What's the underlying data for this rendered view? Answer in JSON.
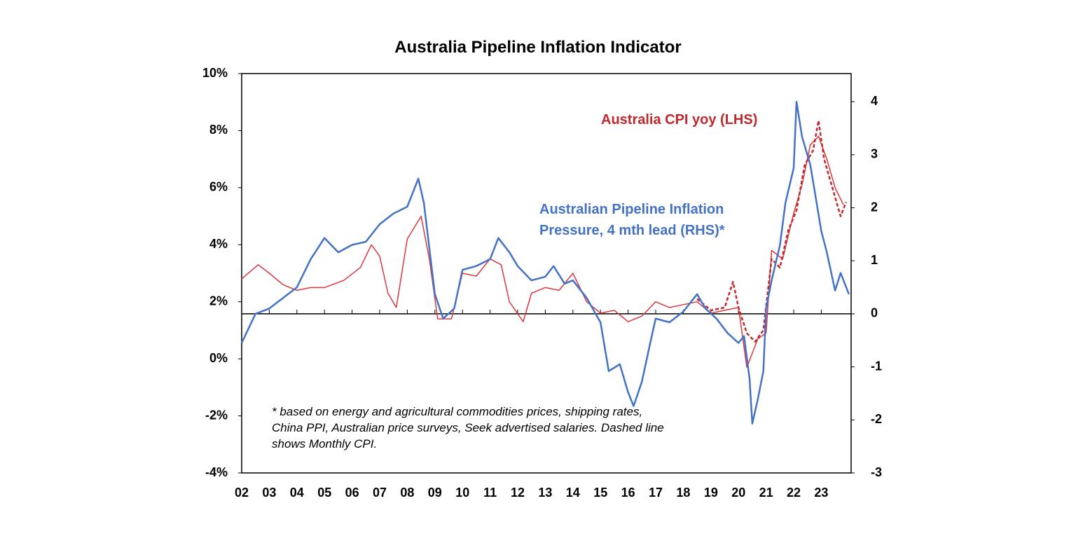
{
  "chart_data": {
    "type": "line",
    "title": "Australia Pipeline Inflation Indicator",
    "footnote": "* based on energy and agricultural commodities prices, shipping rates, China PPI, Australian price surveys, Seek advertised salaries. Dashed line shows Monthly CPI.",
    "xlim": [
      2002,
      2024.08
    ],
    "xticks": [
      {
        "value": 2002,
        "label": "02"
      },
      {
        "value": 2003,
        "label": "03"
      },
      {
        "value": 2004,
        "label": "04"
      },
      {
        "value": 2005,
        "label": "05"
      },
      {
        "value": 2006,
        "label": "06"
      },
      {
        "value": 2007,
        "label": "07"
      },
      {
        "value": 2008,
        "label": "08"
      },
      {
        "value": 2009,
        "label": "09"
      },
      {
        "value": 2010,
        "label": "10"
      },
      {
        "value": 2011,
        "label": "11"
      },
      {
        "value": 2012,
        "label": "12"
      },
      {
        "value": 2013,
        "label": "13"
      },
      {
        "value": 2014,
        "label": "14"
      },
      {
        "value": 2015,
        "label": "15"
      },
      {
        "value": 2016,
        "label": "16"
      },
      {
        "value": 2017,
        "label": "17"
      },
      {
        "value": 2018,
        "label": "18"
      },
      {
        "value": 2019,
        "label": "19"
      },
      {
        "value": 2020,
        "label": "20"
      },
      {
        "value": 2021,
        "label": "21"
      },
      {
        "value": 2022,
        "label": "22"
      },
      {
        "value": 2023,
        "label": "23"
      }
    ],
    "ylim": [
      -4,
      10
    ],
    "yticks": [
      {
        "value": -4,
        "label": "-4%"
      },
      {
        "value": -2,
        "label": "-2%"
      },
      {
        "value": 0,
        "label": "0%"
      },
      {
        "value": 2,
        "label": "2%"
      },
      {
        "value": 4,
        "label": "4%"
      },
      {
        "value": 6,
        "label": "6%"
      },
      {
        "value": 8,
        "label": "8%"
      },
      {
        "value": 10,
        "label": "10%"
      }
    ],
    "y2lim": [
      -3,
      4.53
    ],
    "y2ticks": [
      -3,
      -2,
      -1,
      0,
      1,
      2,
      3,
      4
    ],
    "series": [
      {
        "name": "Australia CPI yoy (LHS)",
        "color": "#d9383e",
        "width": 1.5,
        "x": [
          2002.0,
          2002.6,
          2003.0,
          2003.5,
          2004.0,
          2004.5,
          2005.0,
          2005.7,
          2006.3,
          2006.7,
          2007.0,
          2007.3,
          2007.6,
          2008.0,
          2008.5,
          2008.8,
          2009.1,
          2009.6,
          2010.0,
          2010.5,
          2011.0,
          2011.4,
          2011.7,
          2012.2,
          2012.5,
          2013.0,
          2013.5,
          2014.0,
          2014.5,
          2015.0,
          2015.5,
          2016.0,
          2016.5,
          2017.0,
          2017.5,
          2018.0,
          2018.5,
          2019.0,
          2019.5,
          2020.0,
          2020.3,
          2020.7,
          2021.0,
          2021.2,
          2021.6,
          2022.0,
          2022.3,
          2022.6,
          2022.9,
          2023.2,
          2023.5,
          2023.8
        ],
        "values": [
          2.8,
          3.3,
          3.0,
          2.6,
          2.4,
          2.5,
          2.5,
          2.75,
          3.2,
          4.0,
          3.6,
          2.3,
          1.8,
          4.2,
          5.0,
          3.5,
          1.4,
          1.4,
          3.0,
          2.9,
          3.5,
          3.3,
          2.0,
          1.3,
          2.3,
          2.5,
          2.4,
          3.0,
          2.0,
          1.6,
          1.7,
          1.3,
          1.5,
          2.0,
          1.8,
          1.9,
          2.0,
          1.6,
          1.7,
          1.8,
          -0.3,
          0.7,
          0.9,
          3.8,
          3.5,
          5.1,
          6.1,
          7.5,
          7.8,
          7.0,
          6.0,
          5.4
        ]
      },
      {
        "color": "#c0282d",
        "width": 2.5,
        "dashed": true,
        "x": [
          2018.5,
          2019.0,
          2019.5,
          2019.8,
          2020.0,
          2020.3,
          2020.6,
          2020.9,
          2021.2,
          2021.5,
          2021.8,
          2022.1,
          2022.4,
          2022.7,
          2022.9,
          2023.1,
          2023.4,
          2023.7,
          2023.9
        ],
        "values": [
          2.1,
          1.7,
          1.8,
          2.7,
          1.8,
          0.9,
          0.6,
          1.0,
          3.5,
          3.2,
          4.5,
          5.2,
          6.8,
          7.3,
          8.35,
          7.0,
          6.0,
          5.0,
          5.5
        ]
      },
      {
        "name": "Australian Pipeline Inflation Pressure, 4 mth lead (RHS)*",
        "color": "#4472c4",
        "width": 2.5,
        "axis": "y2",
        "x": [
          2002.0,
          2002.5,
          2003.0,
          2003.5,
          2004.0,
          2004.5,
          2005.0,
          2005.5,
          2006.0,
          2006.5,
          2007.0,
          2007.5,
          2008.0,
          2008.4,
          2008.6,
          2009.0,
          2009.3,
          2009.7,
          2010.0,
          2010.5,
          2011.0,
          2011.3,
          2011.7,
          2012.0,
          2012.5,
          2013.0,
          2013.3,
          2013.7,
          2014.0,
          2014.5,
          2015.0,
          2015.3,
          2015.7,
          2016.0,
          2016.2,
          2016.5,
          2016.8,
          2017.0,
          2017.5,
          2018.0,
          2018.5,
          2018.8,
          2019.2,
          2019.6,
          2020.0,
          2020.2,
          2020.4,
          2020.5,
          2020.7,
          2020.9,
          2021.0,
          2021.2,
          2021.5,
          2021.7,
          2022.0,
          2022.1,
          2022.3,
          2022.6,
          2023.0,
          2023.2,
          2023.5,
          2023.7,
          2024.0
        ],
        "values": [
          -0.55,
          0,
          0.1,
          0.3,
          0.5,
          1.03,
          1.43,
          1.16,
          1.3,
          1.36,
          1.69,
          1.89,
          2.02,
          2.55,
          2.09,
          0.37,
          -0.09,
          0.1,
          0.83,
          0.9,
          1.03,
          1.43,
          1.16,
          0.9,
          0.63,
          0.7,
          0.9,
          0.57,
          0.63,
          0.3,
          -0.16,
          -1.08,
          -0.95,
          -1.48,
          -1.74,
          -1.28,
          -0.55,
          -0.09,
          -0.16,
          0.04,
          0.37,
          0.1,
          -0.09,
          -0.36,
          -0.55,
          -0.42,
          -1.22,
          -2.07,
          -1.61,
          -1.08,
          0.1,
          0.63,
          1.29,
          2.09,
          2.75,
          4.0,
          3.34,
          2.81,
          1.56,
          1.16,
          0.44,
          0.77,
          0.37
        ]
      }
    ]
  }
}
